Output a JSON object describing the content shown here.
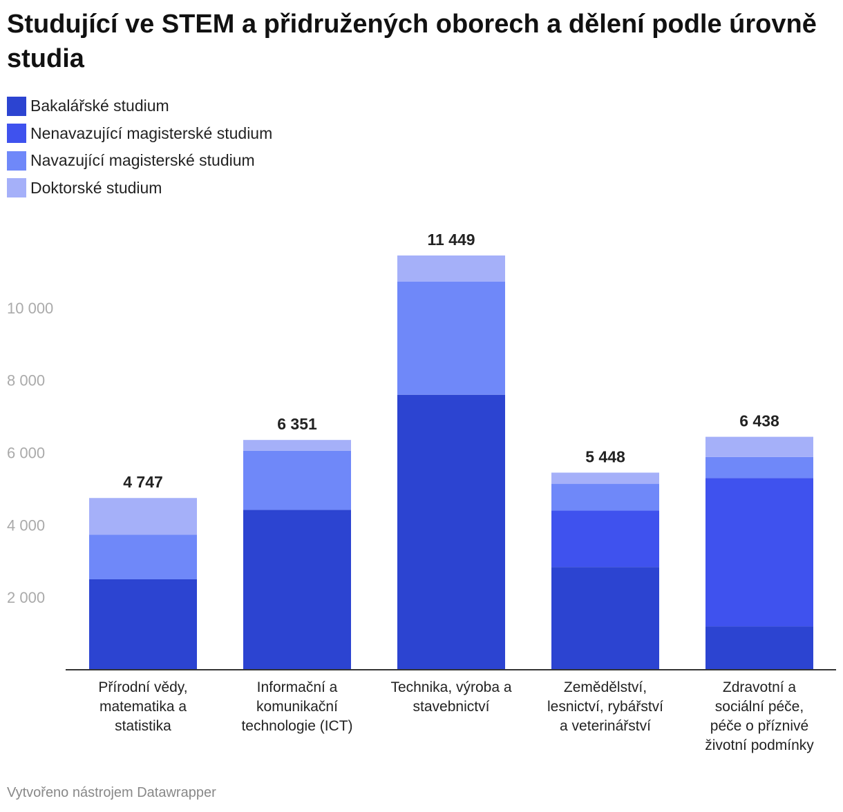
{
  "title": "Studující ve STEM a přidružených oborech a dělení podle úrovně studia",
  "source": "Vytvořeno nástrojem Datawrapper",
  "chart_data": {
    "type": "bar",
    "stacked": true,
    "categories": [
      [
        "Přírodní vědy,",
        "matematika a",
        "statistika"
      ],
      [
        "Informační a",
        "komunikační",
        "technologie (ICT)"
      ],
      [
        "Technika, výroba a",
        "stavebnictví"
      ],
      [
        "Zemědělství,",
        "lesnictví, rybářství",
        "a veterinářství"
      ],
      [
        "Zdravotní a",
        "sociální péče,",
        "péče o příznivé",
        "životní podmínky"
      ]
    ],
    "series": [
      {
        "name": "Bakalářské studium",
        "color": "#2c44d1",
        "values": [
          2500,
          4420,
          7600,
          2840,
          1200
        ]
      },
      {
        "name": "Nenavazující magisterské studium",
        "color": "#3f52ee",
        "values": [
          0,
          0,
          0,
          1560,
          4100
        ]
      },
      {
        "name": "Navazující magisterské studium",
        "color": "#6f88f9",
        "values": [
          1230,
          1630,
          3130,
          740,
          580
        ]
      },
      {
        "name": "Doktorské studium",
        "color": "#a5b0f9",
        "values": [
          1017,
          301,
          719,
          308,
          558
        ]
      }
    ],
    "totals": [
      "4 747",
      "6 351",
      "11 449",
      "5 448",
      "6 438"
    ],
    "y_ticks": [
      2000,
      4000,
      6000,
      8000,
      10000
    ],
    "y_tick_labels": [
      "2 000",
      "4 000",
      "6 000",
      "8 000",
      "10 000"
    ],
    "ylim": [
      0,
      11449
    ],
    "grid": false,
    "legend_position": "top-left"
  }
}
